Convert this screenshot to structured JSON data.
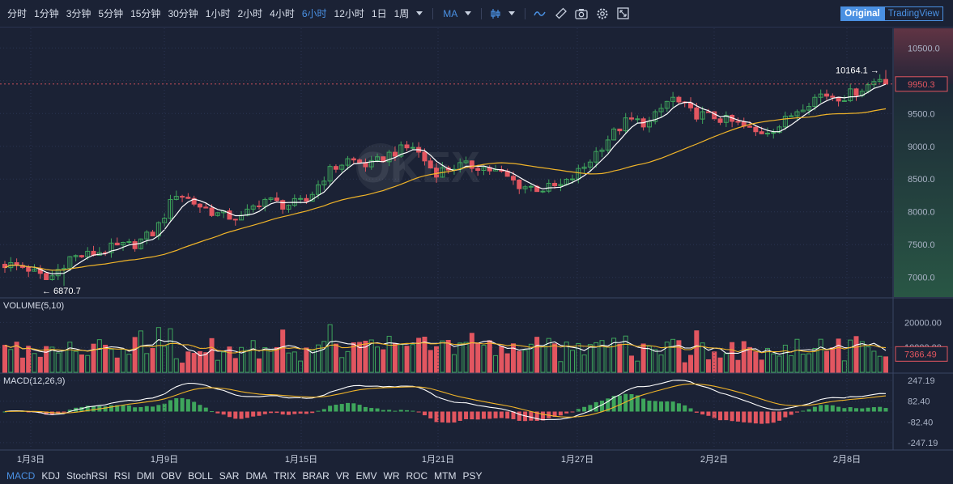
{
  "toolbar": {
    "timeframes": [
      "分时",
      "1分钟",
      "3分钟",
      "5分钟",
      "15分钟",
      "30分钟",
      "1小时",
      "2小时",
      "4小时",
      "6小时",
      "12小时",
      "1日",
      "1周"
    ],
    "active_timeframe": "6小时",
    "indicator_label": "MA",
    "icons": [
      "candle-style-icon",
      "indicator-wave-icon",
      "ruler-icon",
      "camera-icon",
      "settings-gear-icon",
      "fullscreen-icon"
    ],
    "view_original": "Original",
    "view_tradingview": "TradingView"
  },
  "watermark": "OKEX",
  "panes": {
    "volume_label": "VOLUME(5,10)",
    "macd_label": "MACD(12,26,9)"
  },
  "price_axis": {
    "ticks": [
      "10500.0",
      "10000.0",
      "9500.0",
      "9000.0",
      "8500.0",
      "8000.0",
      "7500.0",
      "7000.0"
    ],
    "current_price": "9950.3",
    "high_marker": "10164.1",
    "low_marker": "6870.7"
  },
  "volume_axis": {
    "ticks": [
      "20000.00",
      "10000.00"
    ],
    "current_volume": "7366.49"
  },
  "macd_axis": {
    "ticks": [
      "247.19",
      "82.40",
      "-82.40",
      "-247.19"
    ]
  },
  "date_axis": [
    "1月3日",
    "1月9日",
    "1月15日",
    "1月21日",
    "1月27日",
    "2月2日",
    "2月8日"
  ],
  "colors": {
    "background": "#1b2235",
    "up": "#3ea55c",
    "down": "#e25660",
    "ma_fast": "#ffffff",
    "ma_slow": "#f0b429",
    "accent": "#4a90e2"
  },
  "chart_data": {
    "type": "candlestick",
    "dates_labeled": [
      "1月3日",
      "1月9日",
      "1月15日",
      "1月21日",
      "1月27日",
      "2月2日",
      "2月8日"
    ],
    "close_trend": [
      7200,
      7150,
      6950,
      7300,
      7350,
      7450,
      7500,
      7700,
      8300,
      8100,
      7950,
      7900,
      8200,
      8100,
      8150,
      8600,
      8800,
      8700,
      8900,
      9000,
      8600,
      8700,
      8700,
      8600,
      8400,
      8350,
      8400,
      8700,
      9100,
      9400,
      9350,
      9750,
      9500,
      9450,
      9350,
      9200,
      9300,
      9600,
      9800,
      9750,
      9900,
      10100
    ],
    "price_range": [
      6700,
      10800
    ],
    "high": 10164.1,
    "low": 6870.7,
    "last": 9950.3,
    "volume_last": 7366.49,
    "volume_range": [
      0,
      25000
    ],
    "macd_range": [
      -300,
      300
    ],
    "series": [
      {
        "name": "VOLUME(5,10)"
      },
      {
        "name": "MACD(12,26,9)"
      }
    ]
  },
  "bottom_indicators": [
    "MACD",
    "KDJ",
    "StochRSI",
    "RSI",
    "DMI",
    "OBV",
    "BOLL",
    "SAR",
    "DMA",
    "TRIX",
    "BRAR",
    "VR",
    "EMV",
    "WR",
    "ROC",
    "MTM",
    "PSY"
  ],
  "active_bottom_indicator": "MACD"
}
